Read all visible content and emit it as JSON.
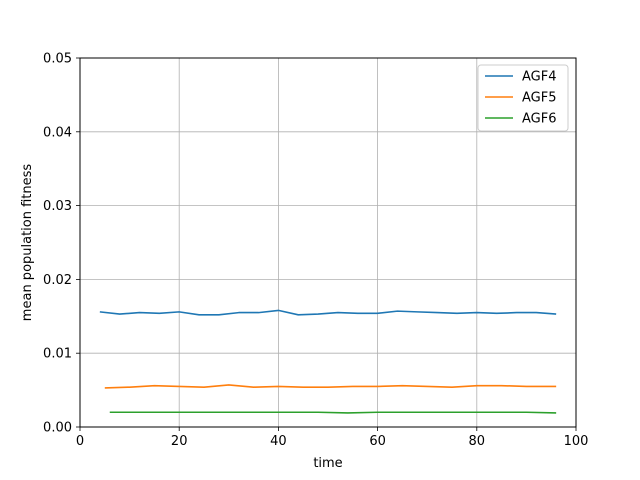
{
  "chart_data": {
    "type": "line",
    "title": "",
    "xlabel": "time",
    "ylabel": "mean population fitness",
    "xlim": [
      0,
      100
    ],
    "ylim": [
      0,
      0.05
    ],
    "xticks": [
      0,
      20,
      40,
      60,
      80,
      100
    ],
    "xtick_labels": [
      "0",
      "20",
      "40",
      "60",
      "80",
      "100"
    ],
    "yticks": [
      0.0,
      0.01,
      0.02,
      0.03,
      0.04,
      0.05
    ],
    "ytick_labels": [
      "0.00",
      "0.01",
      "0.02",
      "0.03",
      "0.04",
      "0.05"
    ],
    "grid": true,
    "legend_position": "top-right",
    "series": [
      {
        "name": "AGF4",
        "color": "#1f77b4",
        "x": [
          4,
          8,
          12,
          16,
          20,
          24,
          28,
          32,
          36,
          40,
          44,
          48,
          52,
          56,
          60,
          64,
          68,
          72,
          76,
          80,
          84,
          88,
          92,
          96
        ],
        "y": [
          0.0156,
          0.0153,
          0.0155,
          0.0154,
          0.0156,
          0.0152,
          0.0152,
          0.0155,
          0.0155,
          0.0158,
          0.0152,
          0.0153,
          0.0155,
          0.0154,
          0.0154,
          0.0157,
          0.0156,
          0.0155,
          0.0154,
          0.0155,
          0.0154,
          0.0155,
          0.0155,
          0.0153
        ]
      },
      {
        "name": "AGF5",
        "color": "#ff7f0e",
        "x": [
          5,
          10,
          15,
          20,
          25,
          30,
          35,
          40,
          45,
          50,
          55,
          60,
          65,
          70,
          75,
          80,
          85,
          90,
          96
        ],
        "y": [
          0.0053,
          0.0054,
          0.0056,
          0.0055,
          0.0054,
          0.0057,
          0.0054,
          0.0055,
          0.0054,
          0.0054,
          0.0055,
          0.0055,
          0.0056,
          0.0055,
          0.0054,
          0.0056,
          0.0056,
          0.0055,
          0.0055
        ]
      },
      {
        "name": "AGF6",
        "color": "#2ca02c",
        "x": [
          6,
          12,
          18,
          24,
          30,
          36,
          42,
          48,
          54,
          60,
          66,
          72,
          78,
          84,
          90,
          96
        ],
        "y": [
          0.002,
          0.002,
          0.002,
          0.002,
          0.002,
          0.002,
          0.002,
          0.002,
          0.0019,
          0.002,
          0.002,
          0.002,
          0.002,
          0.002,
          0.002,
          0.0019
        ]
      }
    ]
  }
}
